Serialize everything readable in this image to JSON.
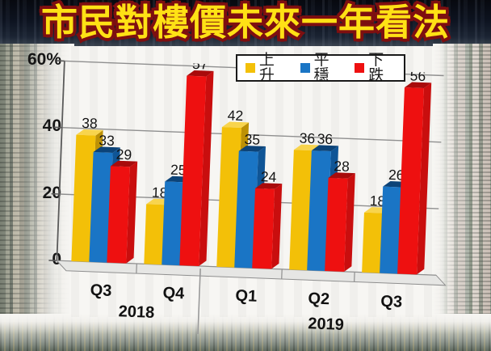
{
  "title": "市民對樓價未來一年看法",
  "chart_data": {
    "type": "bar",
    "style": "3d-clustered-column",
    "title": "市民對樓價未來一年看法",
    "categories": [
      "Q3",
      "Q4",
      "Q1",
      "Q2",
      "Q3"
    ],
    "year_groups": [
      {
        "label": "2018",
        "span": [
          0,
          1
        ]
      },
      {
        "label": "2019",
        "span": [
          2,
          4
        ]
      }
    ],
    "series": [
      {
        "name": "上升",
        "values": [
          38,
          18,
          42,
          36,
          18
        ],
        "color": "#F3C008",
        "color_side": "#BD9105",
        "color_top": "#F8D44D"
      },
      {
        "name": "平穩",
        "values": [
          33,
          25,
          35,
          36,
          26
        ],
        "color": "#1A75C5",
        "color_side": "#0F5596",
        "color_top": "#0C4378"
      },
      {
        "name": "下跌",
        "values": [
          29,
          57,
          24,
          28,
          56
        ],
        "color": "#EE1010",
        "color_side": "#C90E0E",
        "color_top": "#A80B0B"
      }
    ],
    "ylabel": "%",
    "ylim": [
      0,
      60
    ],
    "yticks": [
      {
        "value": 60,
        "label": "60%"
      },
      {
        "value": 40,
        "label": "40"
      },
      {
        "value": 20,
        "label": "20"
      },
      {
        "value": 0,
        "label": "0"
      }
    ],
    "grid": true,
    "legend_position": "top-right",
    "gridline_color": "#8f8f8f",
    "axis_color": "#5a5a5a",
    "floor_color": "#e6e6e4",
    "label_color": "#141414"
  }
}
